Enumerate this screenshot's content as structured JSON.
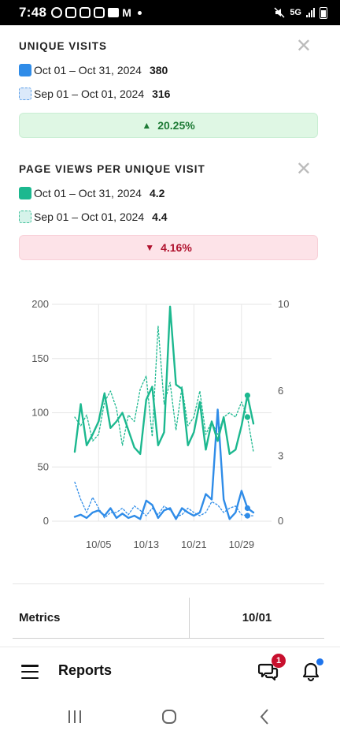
{
  "status_bar": {
    "time": "7:48",
    "notification_icons": [
      "screen-record-icon",
      "instagram-icon",
      "instagram-icon",
      "instagram-icon",
      "folder-icon",
      "gmail-icon"
    ],
    "right_icons": [
      "mute-icon",
      "5g-icon",
      "signal-icon",
      "battery-icon"
    ],
    "network": "5G"
  },
  "unique_visits": {
    "title": "UNIQUE VISITS",
    "current": {
      "range": "Oct 01 – Oct 31, 2024",
      "value": "380"
    },
    "previous": {
      "range": "Sep 01 – Oct 01, 2024",
      "value": "316"
    },
    "change": "20.25%",
    "direction": "up"
  },
  "page_views": {
    "title": "PAGE VIEWS PER UNIQUE VISIT",
    "current": {
      "range": "Oct 01 – Oct 31, 2024",
      "value": "4.2"
    },
    "previous": {
      "range": "Sep 01 – Oct 01, 2024",
      "value": "4.4"
    },
    "change": "4.16%",
    "direction": "down"
  },
  "colors": {
    "blue": "#2f8ce8",
    "green": "#1cb88f",
    "up_bg": "#dff7e4",
    "up_text": "#1d7a35",
    "down_bg": "#fde3e8",
    "down_text": "#b0122e"
  },
  "chart_data": {
    "type": "line",
    "x_ticks": [
      "10/05",
      "10/13",
      "10/21",
      "10/29"
    ],
    "y_left": {
      "ticks": [
        "0",
        "50",
        "100",
        "150",
        "200"
      ],
      "lim": [
        0,
        200
      ]
    },
    "y_right": {
      "ticks": [
        "0",
        "3",
        "6",
        "10"
      ],
      "lim": [
        0,
        10
      ]
    },
    "grid": true,
    "days": [
      1,
      2,
      3,
      4,
      5,
      6,
      7,
      8,
      9,
      10,
      11,
      12,
      13,
      14,
      15,
      16,
      17,
      18,
      19,
      20,
      21,
      22,
      23,
      24,
      25,
      26,
      27,
      28,
      29,
      30,
      31
    ],
    "series": [
      {
        "axis": "left",
        "color": "#2f8ce8",
        "style": "solid",
        "values": [
          4,
          6,
          3,
          8,
          10,
          5,
          12,
          3,
          7,
          3,
          5,
          2,
          19,
          15,
          3,
          10,
          12,
          2,
          12,
          8,
          5,
          8,
          25,
          20,
          103,
          20,
          2,
          8,
          28,
          12,
          8
        ]
      },
      {
        "axis": "left",
        "color": "#2f8ce8",
        "style": "dotted",
        "values": [
          36,
          20,
          8,
          22,
          12,
          3,
          8,
          8,
          12,
          6,
          14,
          10,
          5,
          12,
          6,
          14,
          10,
          4,
          6,
          12,
          8,
          5,
          8,
          18,
          15,
          8,
          12,
          14,
          6,
          5,
          5
        ]
      },
      {
        "axis": "right",
        "color": "#1cb88f",
        "style": "solid",
        "values": [
          3.2,
          5.4,
          3.5,
          4.0,
          4.6,
          5.9,
          4.3,
          4.6,
          5.0,
          4.2,
          3.4,
          3.1,
          5.6,
          6.2,
          3.5,
          4.1,
          9.9,
          6.3,
          6.1,
          3.5,
          4.1,
          5.5,
          3.3,
          4.6,
          3.7,
          4.8,
          3.1,
          3.3,
          4.4,
          5.8,
          4.5
        ]
      },
      {
        "axis": "right",
        "color": "#1cb88f",
        "style": "dotted",
        "values": [
          4.8,
          4.4,
          4.9,
          3.7,
          4.0,
          5.5,
          6.0,
          5.2,
          3.5,
          4.9,
          4.6,
          6.1,
          6.7,
          3.9,
          9.0,
          5.4,
          6.4,
          4.2,
          6.2,
          4.4,
          4.8,
          6.0,
          4.0,
          4.6,
          4.0,
          4.8,
          5.0,
          4.8,
          5.5,
          4.8,
          3.2
        ]
      }
    ]
  },
  "table": {
    "header_label": "Metrics",
    "header_date": "10/01"
  },
  "bottom_bar": {
    "title": "Reports",
    "chat_badge": "1"
  }
}
